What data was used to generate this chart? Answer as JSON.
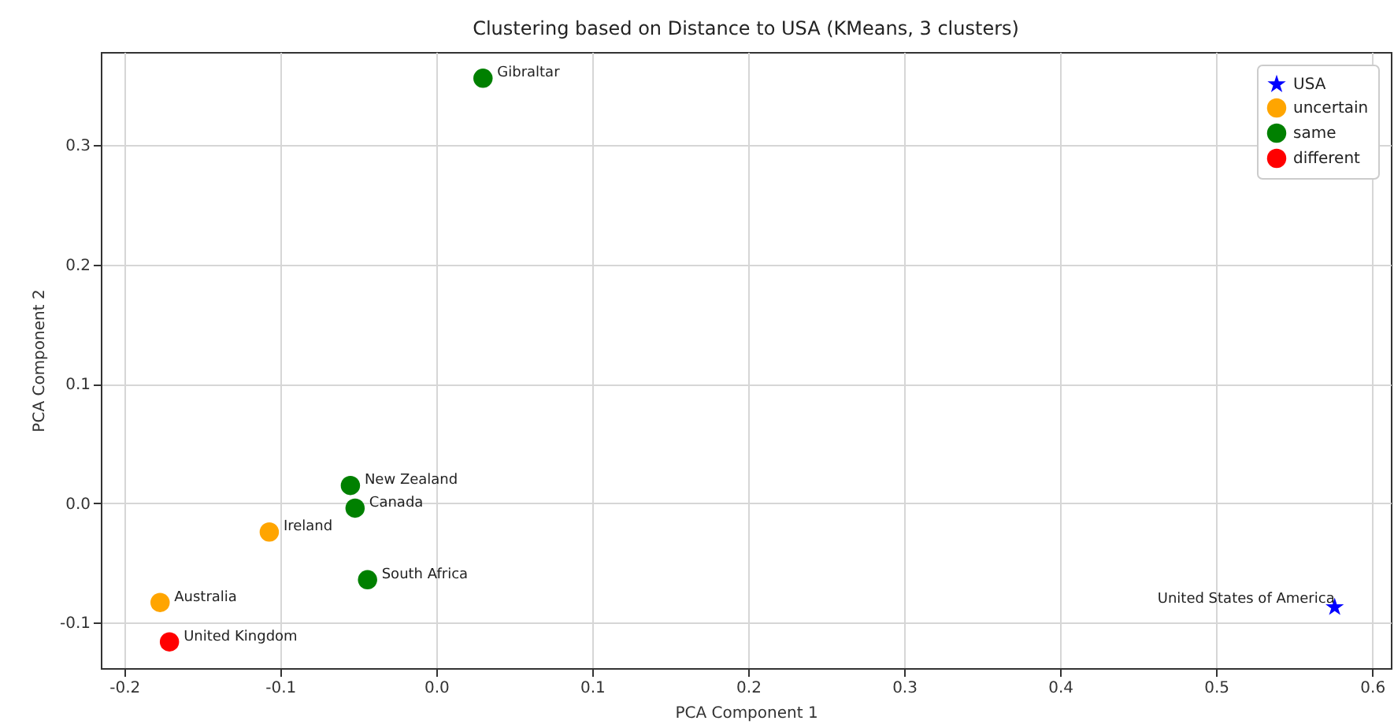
{
  "chart_data": {
    "type": "scatter",
    "title": "Clustering based on Distance to USA (KMeans, 3 clusters)",
    "xlabel": "PCA Component 1",
    "ylabel": "PCA Component 2",
    "xlim": [
      -0.215,
      0.612
    ],
    "ylim": [
      -0.138,
      0.378
    ],
    "xticks": [
      -0.2,
      -0.1,
      {
        "value": 0,
        "label": "0.0"
      },
      0.1,
      0.2,
      0.3,
      0.4,
      0.5,
      0.6
    ],
    "yticks": [
      -0.1,
      {
        "value": 0,
        "label": "0.0"
      },
      0.1,
      0.2,
      0.3
    ],
    "grid": true,
    "legend": "top right",
    "series": [
      {
        "name": "USA",
        "color": "#0000ff",
        "marker": "star",
        "x": [
          0.576
        ],
        "values": [
          -0.087
        ]
      },
      {
        "name": "uncertain",
        "color": "#ffa500",
        "marker": "circle",
        "x": [
          -0.107,
          -0.177
        ],
        "values": [
          -0.024,
          -0.083
        ]
      },
      {
        "name": "same",
        "color": "#008000",
        "marker": "circle",
        "x": [
          0.03,
          -0.055,
          -0.052,
          -0.044
        ],
        "values": [
          0.356,
          0.015,
          -0.004,
          -0.064
        ]
      },
      {
        "name": "different",
        "color": "#ff0000",
        "marker": "circle",
        "x": [
          -0.171
        ],
        "values": [
          -0.116
        ]
      }
    ],
    "annotations": [
      {
        "text": "United States of America",
        "x": 0.576,
        "y": -0.087
      },
      {
        "text": "Gibraltar",
        "x": 0.03,
        "y": 0.356
      },
      {
        "text": "New Zealand",
        "x": -0.055,
        "y": 0.015
      },
      {
        "text": "Canada",
        "x": -0.052,
        "y": -0.004
      },
      {
        "text": "Ireland",
        "x": -0.107,
        "y": -0.024
      },
      {
        "text": "South Africa",
        "x": -0.044,
        "y": -0.064
      },
      {
        "text": "Australia",
        "x": -0.177,
        "y": -0.083
      },
      {
        "text": "United Kingdom",
        "x": -0.171,
        "y": -0.116
      }
    ]
  }
}
